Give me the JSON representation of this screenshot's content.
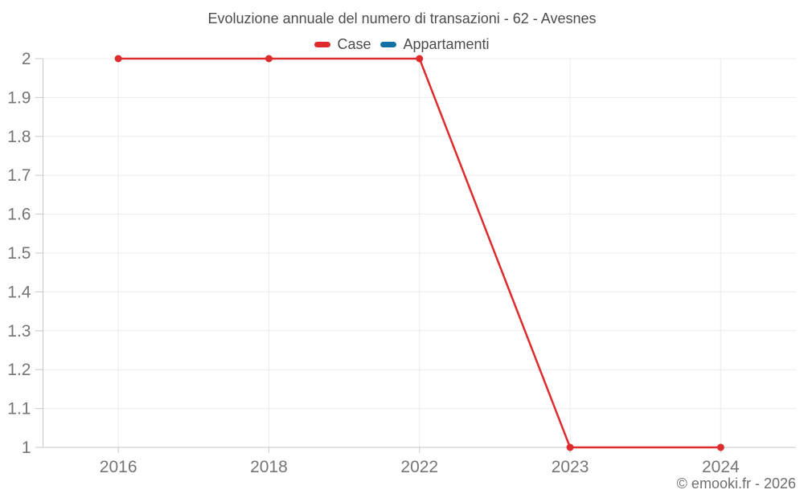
{
  "header": {
    "title": "Evoluzione annuale del numero di transazioni - 62 - Avesnes"
  },
  "legend": {
    "items": [
      {
        "label": "Case",
        "color": "#dd2b2e"
      },
      {
        "label": "Appartamenti",
        "color": "#1471a6"
      }
    ]
  },
  "footer": {
    "copyright": "© emooki.fr - 2026"
  },
  "chart_data": {
    "type": "line",
    "title": "Evoluzione annuale del numero di transazioni - 62 - Avesnes",
    "categories": [
      "2016",
      "2018",
      "2022",
      "2023",
      "2024"
    ],
    "series": [
      {
        "name": "Case",
        "color": "#dd2b2e",
        "values": [
          2,
          2,
          2,
          1,
          1
        ]
      },
      {
        "name": "Appartamenti",
        "color": "#1471a6",
        "values": []
      }
    ],
    "xlabel": "",
    "ylabel": "",
    "ylim": [
      1,
      2
    ],
    "ytick_step": 0.1,
    "yticklabels": [
      "1",
      "1.1",
      "1.2",
      "1.3",
      "1.4",
      "1.5",
      "1.6",
      "1.7",
      "1.8",
      "1.9",
      "2"
    ],
    "grid": true,
    "legend_position": "top",
    "marker": "circle"
  },
  "style": {
    "background": "#ffffff",
    "grid_color": "#ececec",
    "axis_color": "#c9c9c9",
    "tick_label_color": "#757575",
    "title_color": "#4c4c4c",
    "copyright_color": "#6e6e6e"
  }
}
